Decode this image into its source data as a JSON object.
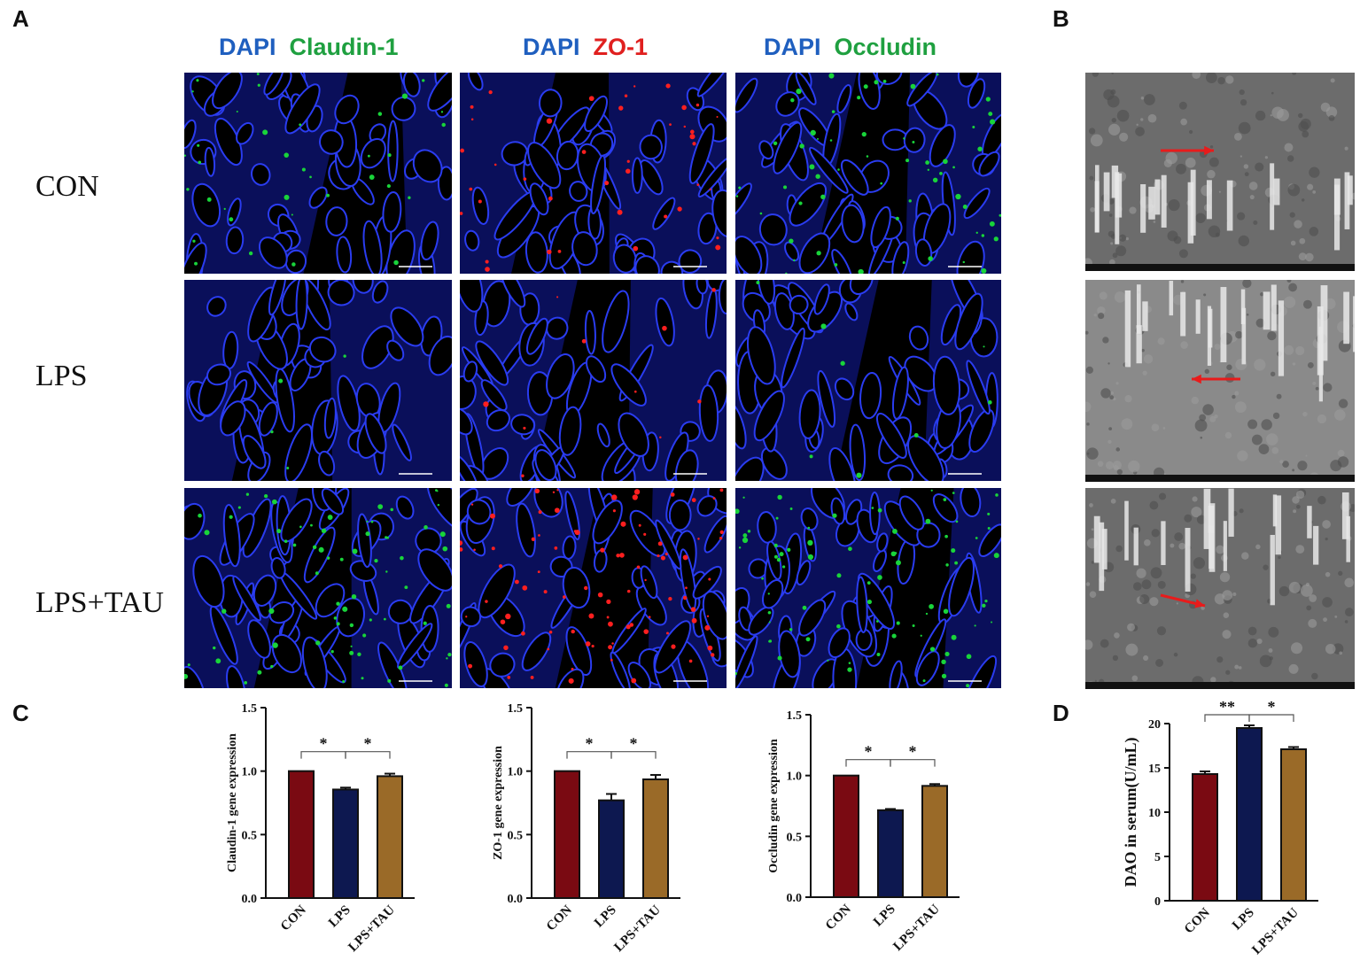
{
  "panel_labels": {
    "a": "A",
    "b": "B",
    "c": "C",
    "d": "D"
  },
  "stain_headers": [
    {
      "dapi": "DAPI",
      "marker": "Claudin-1",
      "marker_color": "#1fa040"
    },
    {
      "dapi": "DAPI",
      "marker": "ZO-1",
      "marker_color": "#e0201f"
    },
    {
      "dapi": "DAPI",
      "marker": "Occludin",
      "marker_color": "#1fa040"
    }
  ],
  "row_labels": [
    "CON",
    "LPS",
    "LPS+TAU"
  ],
  "colors": {
    "dapi": "#1f5fbf",
    "con_bar": "#7a0a12",
    "lps_bar": "#0d1850",
    "tau_bar": "#9a6a28",
    "arrow": "#e81b1b"
  },
  "chart_data": [
    {
      "type": "bar",
      "categories": [
        "CON",
        "LPS",
        "LPS+TAU"
      ],
      "values": [
        1.0,
        0.855,
        0.96
      ],
      "errors": [
        0.0,
        0.015,
        0.02
      ],
      "ylabel": "Claudin-1 gene expression",
      "ylim": [
        0.0,
        1.5
      ],
      "yticks": [
        "0.0",
        "0.5",
        "1.0",
        "1.5"
      ],
      "significance": [
        {
          "from": 0,
          "to": 1,
          "label": "*"
        },
        {
          "from": 1,
          "to": 2,
          "label": "*"
        }
      ]
    },
    {
      "type": "bar",
      "categories": [
        "CON",
        "LPS",
        "LPS+TAU"
      ],
      "values": [
        1.0,
        0.77,
        0.935
      ],
      "errors": [
        0.0,
        0.05,
        0.035
      ],
      "ylabel": "ZO-1 gene expression",
      "ylim": [
        0.0,
        1.5
      ],
      "yticks": [
        "0.0",
        "0.5",
        "1.0",
        "1.5"
      ],
      "significance": [
        {
          "from": 0,
          "to": 1,
          "label": "*"
        },
        {
          "from": 1,
          "to": 2,
          "label": "*"
        }
      ]
    },
    {
      "type": "bar",
      "categories": [
        "CON",
        "LPS",
        "LPS+TAU"
      ],
      "values": [
        1.0,
        0.715,
        0.915
      ],
      "errors": [
        0.0,
        0.01,
        0.015
      ],
      "ylabel": "Occludin gene expression",
      "ylim": [
        0.0,
        1.5
      ],
      "yticks": [
        "0.0",
        "0.5",
        "1.0",
        "1.5"
      ],
      "significance": [
        {
          "from": 0,
          "to": 1,
          "label": "*"
        },
        {
          "from": 1,
          "to": 2,
          "label": "*"
        }
      ]
    },
    {
      "type": "bar",
      "categories": [
        "CON",
        "LPS",
        "LPS+TAU"
      ],
      "values": [
        14.3,
        19.5,
        17.1
      ],
      "errors": [
        0.3,
        0.3,
        0.25
      ],
      "ylabel": "DAO in serum(U/mL)",
      "ylim": [
        0,
        20
      ],
      "yticks": [
        "0",
        "5",
        "10",
        "15",
        "20"
      ],
      "significance": [
        {
          "from": 0,
          "to": 1,
          "label": "**"
        },
        {
          "from": 1,
          "to": 2,
          "label": "*"
        }
      ]
    }
  ]
}
